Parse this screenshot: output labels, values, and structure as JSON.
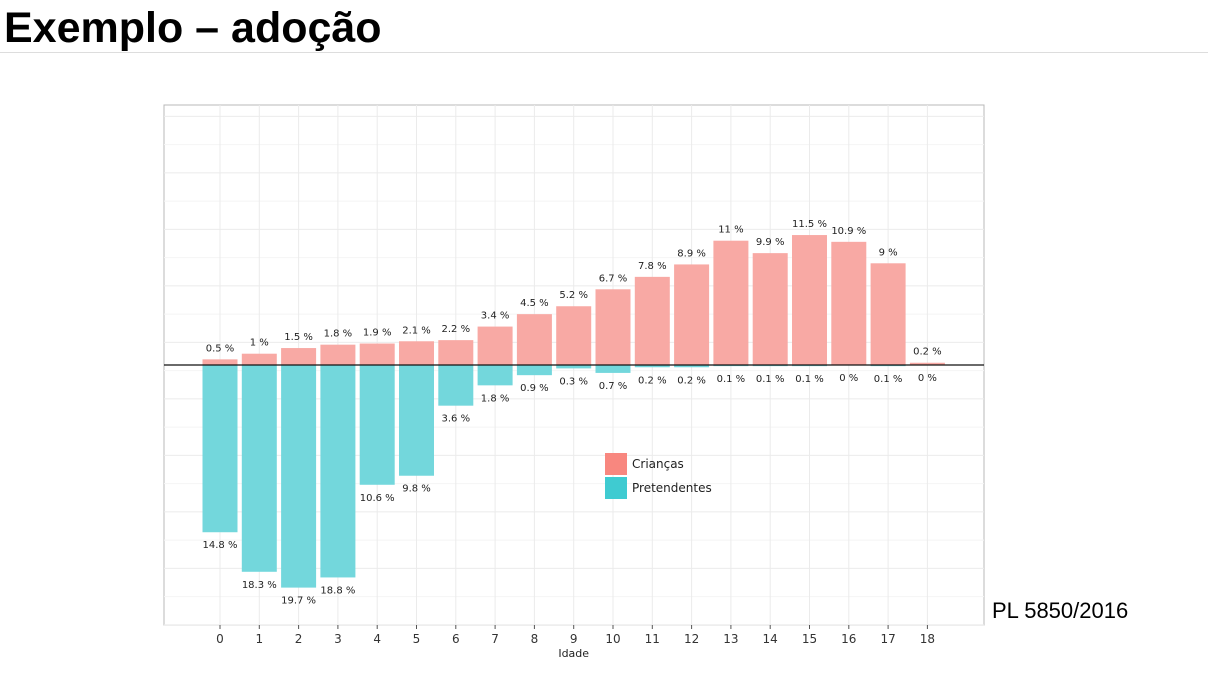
{
  "slide": {
    "title": "Exemplo – adoção",
    "footnote": "PL 5850/2016"
  },
  "colors": {
    "positive": "#f8a9a4",
    "negative": "#73d7dc",
    "legend_positive": "#f8877f",
    "legend_negative": "#3fcbd1"
  },
  "chart_data": {
    "type": "bar",
    "xlabel": "Idade",
    "ylabel": "",
    "title": "",
    "categories": [
      "0",
      "1",
      "2",
      "3",
      "4",
      "5",
      "6",
      "7",
      "8",
      "9",
      "10",
      "11",
      "12",
      "13",
      "14",
      "15",
      "16",
      "17",
      "18"
    ],
    "ylim": [
      -23,
      23
    ],
    "grid": true,
    "legend_position": "center",
    "series": [
      {
        "name": "Crianças",
        "direction": "up",
        "values": [
          0.5,
          1,
          1.5,
          1.8,
          1.9,
          2.1,
          2.2,
          3.4,
          4.5,
          5.2,
          6.7,
          7.8,
          8.9,
          11,
          9.9,
          11.5,
          10.9,
          9,
          0.2
        ],
        "labels": [
          "0.5 %",
          "1 %",
          "1.5 %",
          "1.8 %",
          "1.9 %",
          "2.1 %",
          "2.2 %",
          "3.4 %",
          "4.5 %",
          "5.2 %",
          "6.7 %",
          "7.8 %",
          "8.9 %",
          "11 %",
          "9.9 %",
          "11.5 %",
          "10.9 %",
          "9 %",
          "0.2 %"
        ]
      },
      {
        "name": "Pretendentes",
        "direction": "down",
        "values": [
          14.8,
          18.3,
          19.7,
          18.8,
          10.6,
          9.8,
          3.6,
          1.8,
          0.9,
          0.3,
          0.7,
          0.2,
          0.2,
          0.1,
          0.1,
          0.1,
          0,
          0.1,
          0
        ],
        "labels": [
          "14.8 %",
          "18.3 %",
          "19.7 %",
          "18.8 %",
          "10.6 %",
          "9.8 %",
          "3.6 %",
          "1.8 %",
          "0.9 %",
          "0.3 %",
          "0.7 %",
          "0.2 %",
          "0.2 %",
          "0.1 %",
          "0.1 %",
          "0.1 %",
          "0 %",
          "0.1 %",
          "0 %"
        ]
      }
    ]
  }
}
